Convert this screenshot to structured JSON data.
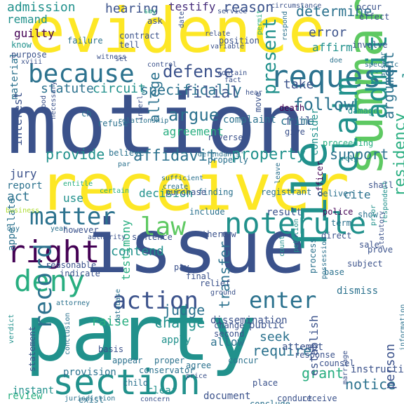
{
  "words": [
    "evidence",
    "motion",
    "receiver",
    "issue",
    "party",
    "file",
    "summary",
    "section",
    "because",
    "request",
    "matter",
    "right",
    "noterule",
    "law",
    "deny",
    "claim",
    "action",
    "admit",
    "record",
    "present",
    "argue",
    "defense",
    "people",
    "residency",
    "enter",
    "admission",
    "hearing",
    "testify",
    "reason",
    "determine",
    "guilty",
    "remand",
    "know",
    "statute",
    "circuit",
    "filial",
    "follow",
    "argument",
    "take",
    "material",
    "interest",
    "provide",
    "affidavit",
    "property",
    "support",
    "allege",
    "agreement",
    "jury",
    "report",
    "act",
    "use",
    "decision",
    "contend",
    "testimony",
    "transfer",
    "raise",
    "judge",
    "charge",
    "allow",
    "seek",
    "require",
    "grant",
    "notice",
    "review",
    "establish",
    "person",
    "apply",
    "conclude",
    "verdict",
    "statement",
    "appellate",
    "business",
    "child",
    "clear",
    "instant",
    "provision",
    "basis",
    "police",
    "result",
    "officer",
    "subject",
    "dismiss",
    "process",
    "possession",
    "final",
    "pay",
    "relief",
    "dissemination",
    "ground",
    "conclusion",
    "database",
    "error",
    "affirm",
    "involve",
    "death",
    "fail",
    "crime",
    "give",
    "move",
    "complaint",
    "consider",
    "proceeding",
    "damage",
    "occur",
    "effect",
    "answer",
    "respondent",
    "statutory",
    "instruction",
    "counsel",
    "response",
    "place",
    "conduct",
    "receive",
    "concern",
    "document",
    "exist",
    "jurisdiction",
    "appear",
    "agree",
    "concur",
    "change",
    "second",
    "public",
    "attempt",
    "direct",
    "count",
    "petition",
    "registrant",
    "finding",
    "purchase",
    "certain",
    "entitle",
    "leave",
    "deliver",
    "shall",
    "show",
    "term",
    "prove",
    "sale",
    "cite",
    "base",
    "day",
    "year",
    "however",
    "authority",
    "sentence",
    "there",
    "new",
    "reasonable",
    "indicate",
    "contract",
    "tell",
    "ask",
    "date",
    "position",
    "failure",
    "purpose",
    "xviii",
    "witness",
    "set",
    "control",
    "say",
    "service",
    "circumstance",
    "permit",
    "respond",
    "specifically",
    "ch",
    "refuse",
    "good",
    "necessary",
    "interl",
    "defendants'",
    "properly",
    "reverse",
    "believe",
    "par",
    "rely",
    "sufficient",
    "create",
    "include",
    "attorney",
    "proper",
    "conservator",
    "price",
    "variable",
    "relate",
    "contain",
    "fact",
    "hear",
    "doe",
    "specific",
    "marriage",
    "information",
    "relationship",
    "prior",
    "statutory"
  ]
}
